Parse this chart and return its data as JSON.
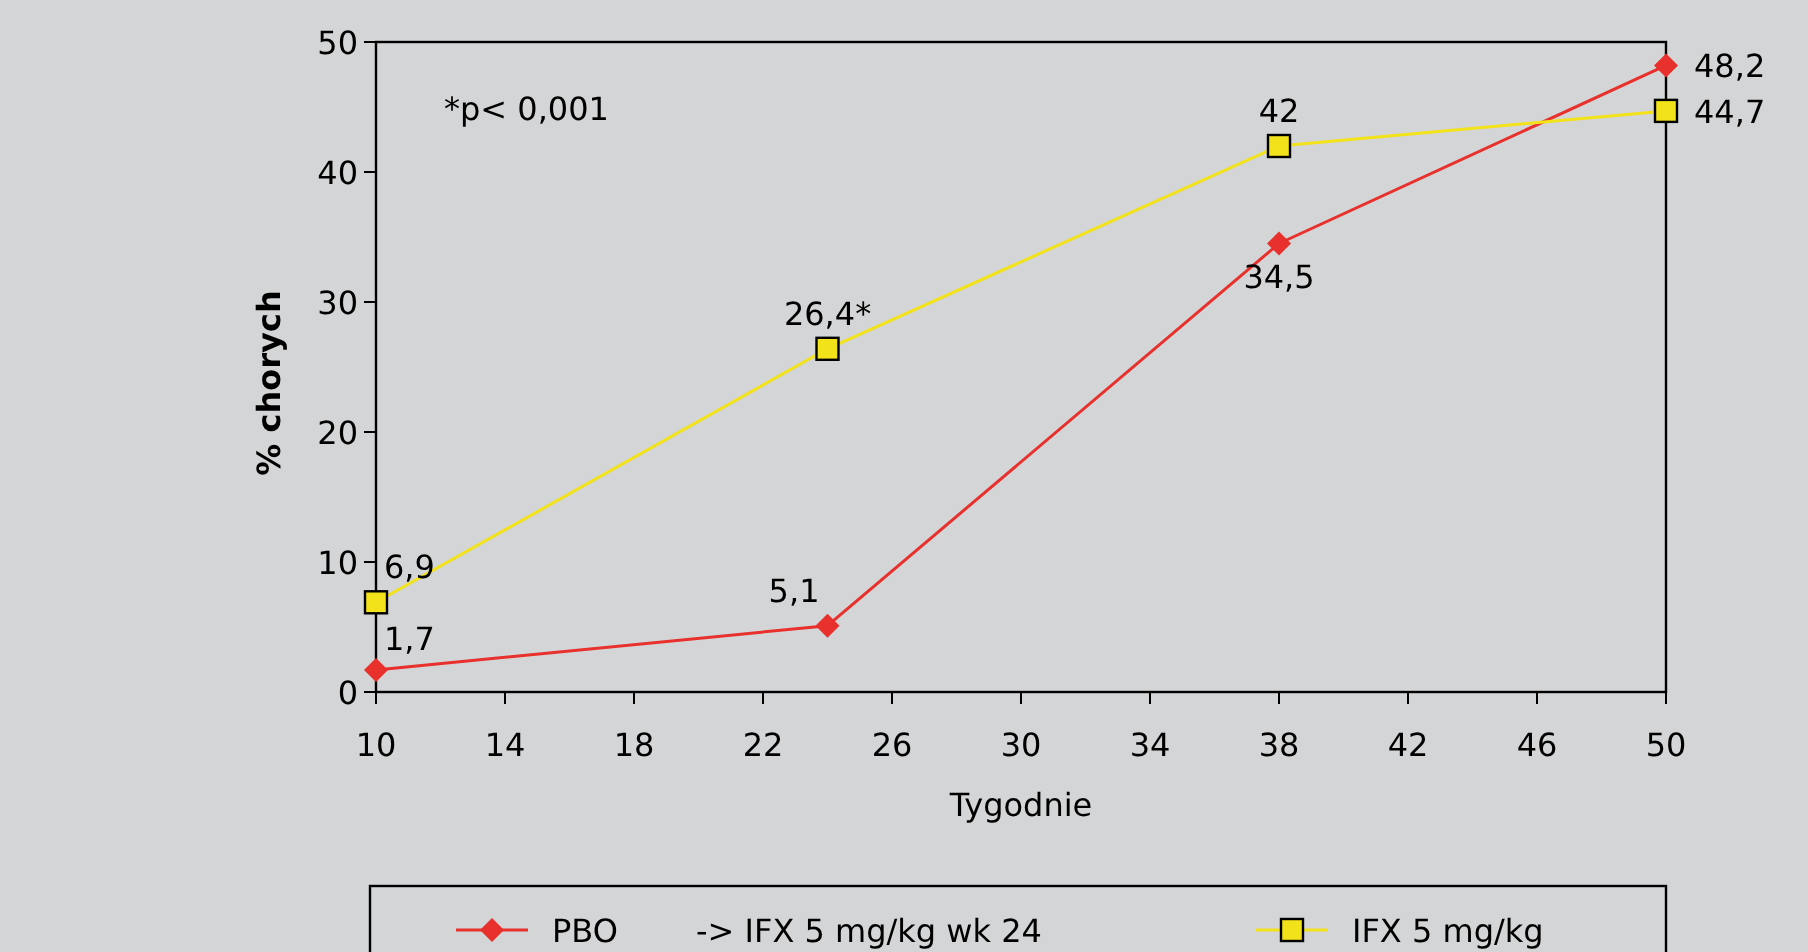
{
  "chart_data": {
    "type": "line",
    "xlabel": "Tygodnie",
    "ylabel": "% chorych",
    "x": [
      10,
      24,
      38,
      50
    ],
    "xlim": [
      10,
      50
    ],
    "xticks": [
      10,
      14,
      18,
      22,
      26,
      30,
      34,
      38,
      42,
      46,
      50
    ],
    "ylim": [
      0,
      50
    ],
    "yticks": [
      0,
      10,
      20,
      30,
      40,
      50
    ],
    "series": [
      {
        "name": "PBO",
        "color": "#e8302c",
        "marker": "diamond",
        "values": [
          1.7,
          5.1,
          34.5,
          48.2
        ],
        "value_labels": [
          "1,7",
          "5,1",
          "34,5",
          "48,2"
        ]
      },
      {
        "name": "IFX 5 mg/kg",
        "color": "#f2e21a",
        "marker": "square",
        "values": [
          6.9,
          26.4,
          42,
          44.7
        ],
        "value_labels": [
          "6,9",
          "26,4*",
          "42",
          "44,7"
        ]
      }
    ],
    "annotations": [
      "*p< 0,001",
      "-> IFX 5 mg/kg wk 24"
    ],
    "grid": false,
    "legend": "bottom",
    "line_style": "solid"
  }
}
